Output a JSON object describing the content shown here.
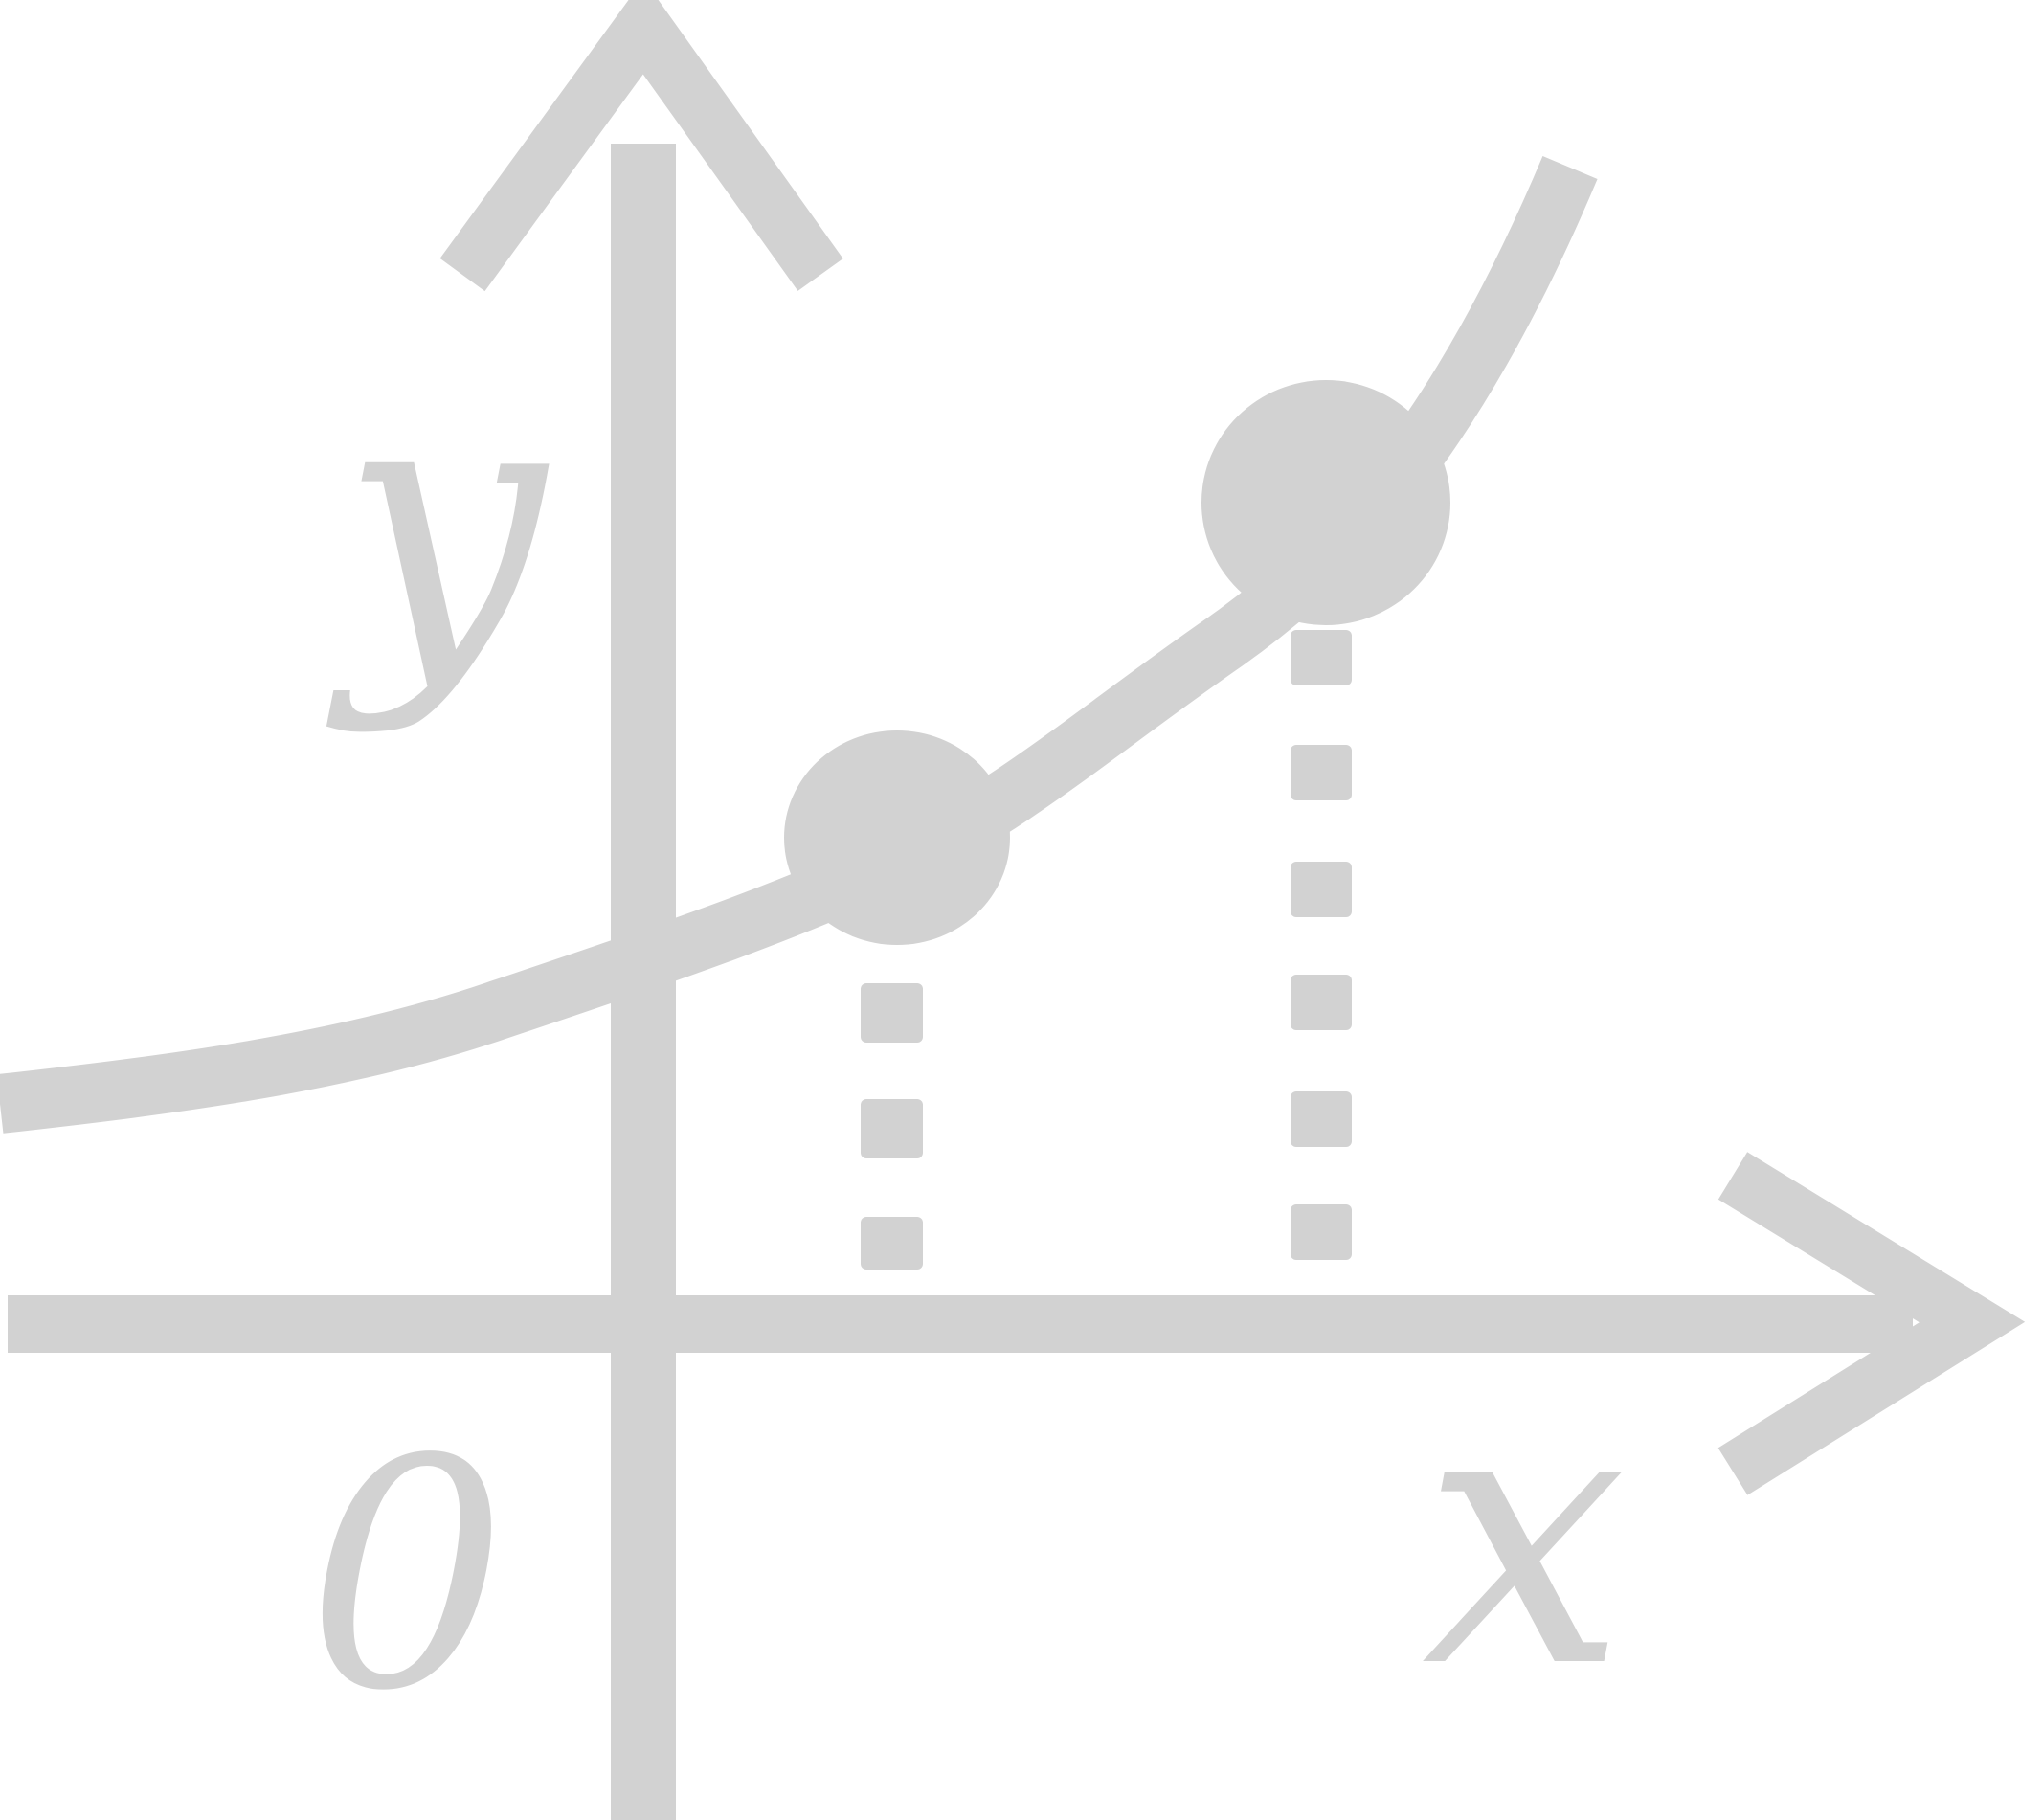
{
  "icon": {
    "name": "function-graph-icon",
    "color": "#d2d2d2",
    "background": "#ffffff"
  },
  "labels": {
    "y_axis": "y",
    "x_axis": "x",
    "origin": "0"
  },
  "curve": {
    "shape": "increasing-curve",
    "marked_points": 2,
    "dotted_guides": 2
  }
}
